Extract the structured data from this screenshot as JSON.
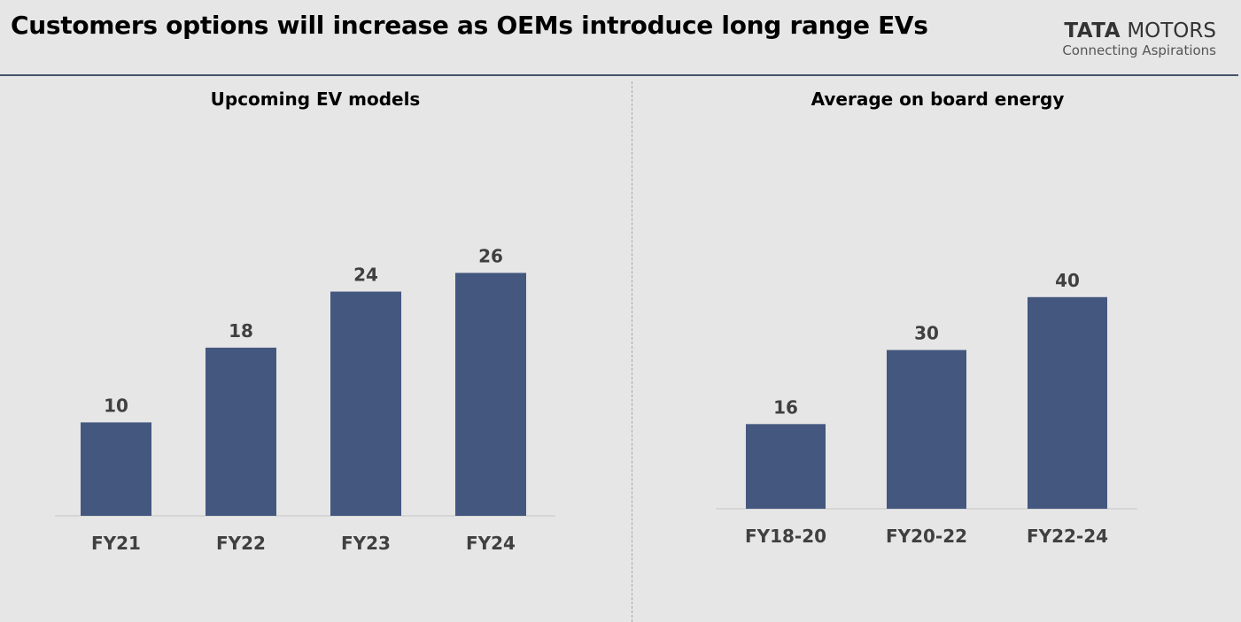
{
  "header": {
    "title": "Customers options will increase as OEMs introduce long range EVs",
    "logo_brand_bold": "TATA",
    "logo_brand": "MOTORS",
    "logo_tagline": "Connecting Aspirations"
  },
  "colors": {
    "background": "#e6e6e6",
    "bar": "#44577f",
    "rule": "#44546a",
    "label": "#404040"
  },
  "chart_data": [
    {
      "type": "bar",
      "title": "Upcoming EV models",
      "categories": [
        "FY21",
        "FY22",
        "FY23",
        "FY24"
      ],
      "values": [
        10,
        18,
        24,
        26
      ],
      "xlabel": "",
      "ylabel": "",
      "grid": false
    },
    {
      "type": "bar",
      "title": "Average on board energy",
      "categories": [
        "FY18-20",
        "FY20-22",
        "FY22-24"
      ],
      "values": [
        16,
        30,
        40
      ],
      "xlabel": "",
      "ylabel": "",
      "grid": false
    }
  ]
}
